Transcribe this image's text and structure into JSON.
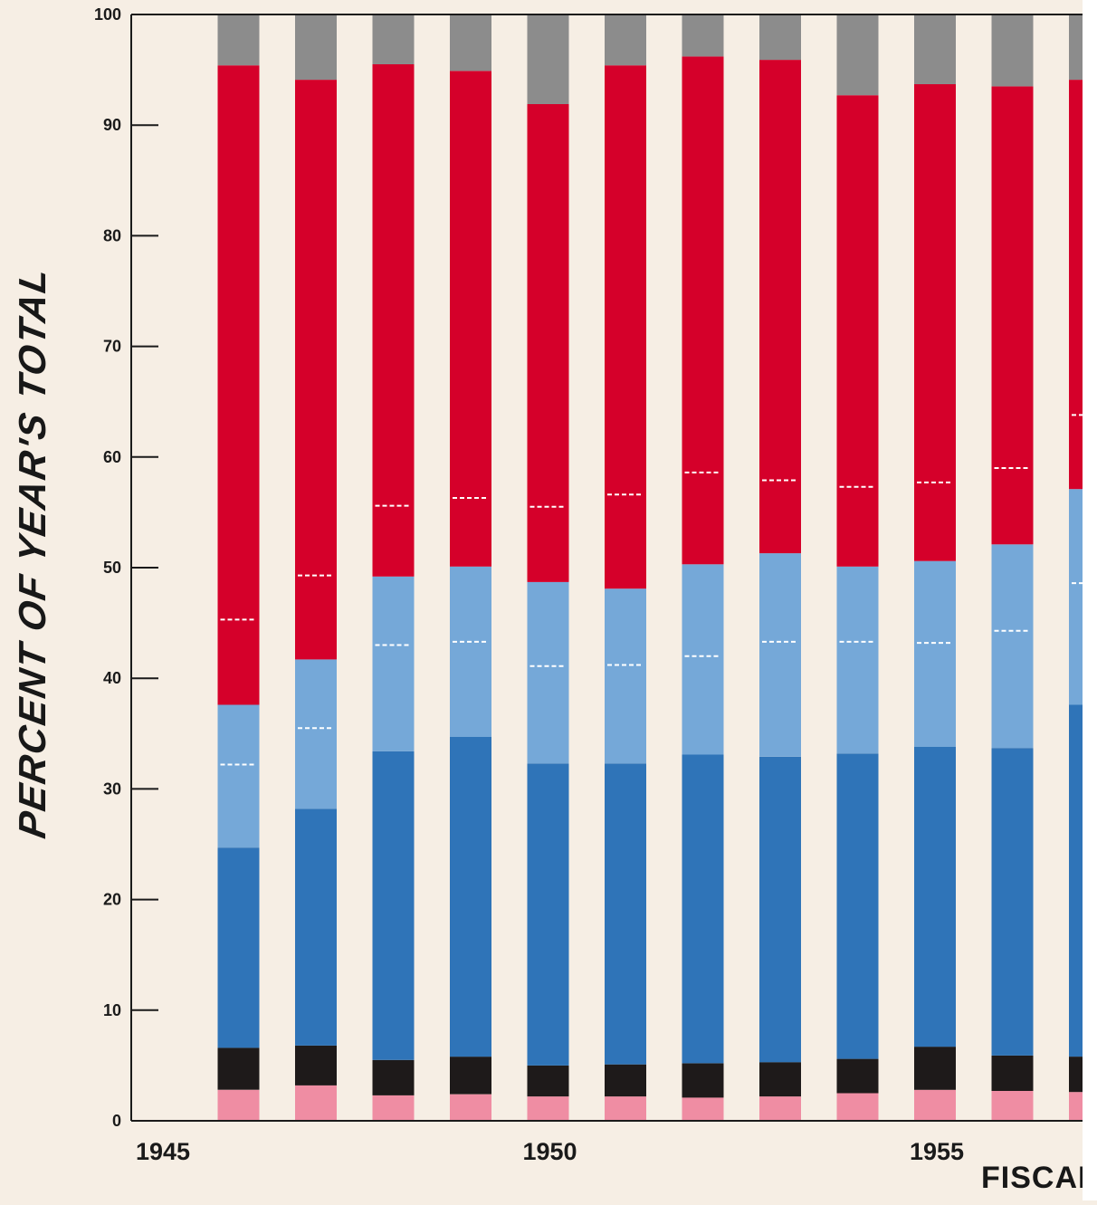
{
  "chart_data": {
    "type": "bar",
    "stacked": true,
    "title": "",
    "ylabel": "PERCENT OF YEAR'S TOTAL",
    "xlabel": "FISCAL",
    "ylim": [
      0,
      100
    ],
    "yticks": [
      0,
      10,
      20,
      30,
      40,
      50,
      60,
      70,
      80,
      90,
      100
    ],
    "x_tick_labels": [
      {
        "year": 1945,
        "label": "1945"
      },
      {
        "year": 1950,
        "label": "1950"
      },
      {
        "year": 1955,
        "label": "1955"
      }
    ],
    "years": [
      1946,
      1947,
      1948,
      1949,
      1950,
      1951,
      1952,
      1953,
      1954,
      1955,
      1956,
      1957
    ],
    "series": [
      {
        "color": "#ef8da3",
        "values": [
          2.8,
          3.2,
          2.3,
          2.4,
          2.2,
          2.2,
          2.1,
          2.2,
          2.5,
          2.8,
          2.7,
          2.6
        ]
      },
      {
        "color": "#1e1a1a",
        "values": [
          3.8,
          3.6,
          3.2,
          3.4,
          2.8,
          2.9,
          3.1,
          3.1,
          3.1,
          3.9,
          3.2,
          3.2
        ]
      },
      {
        "color": "#2f74b8",
        "values": [
          18.1,
          21.4,
          27.9,
          28.9,
          27.3,
          27.2,
          27.9,
          27.6,
          27.6,
          27.1,
          27.8,
          31.8
        ]
      },
      {
        "color": "#75a8d8",
        "values": [
          12.9,
          13.5,
          15.8,
          15.4,
          16.4,
          15.8,
          17.2,
          18.4,
          16.9,
          16.8,
          18.4,
          19.5
        ]
      },
      {
        "color": "#d5002a",
        "values": [
          57.8,
          52.4,
          46.3,
          44.8,
          43.2,
          47.3,
          45.9,
          44.6,
          42.6,
          43.1,
          41.4,
          37.0
        ]
      },
      {
        "color": "#8c8c8c",
        "values": [
          4.6,
          5.9,
          4.5,
          5.1,
          8.1,
          4.6,
          3.8,
          4.1,
          7.3,
          6.3,
          6.5,
          5.9
        ]
      }
    ],
    "dashed_divisions": {
      "light_blue": [
        32.2,
        35.5,
        43.0,
        43.3,
        41.1,
        41.2,
        42.0,
        43.3,
        43.3,
        43.2,
        44.3,
        48.6
      ],
      "red": [
        45.3,
        49.3,
        55.6,
        56.3,
        55.5,
        56.6,
        58.6,
        57.9,
        57.3,
        57.7,
        59.0,
        63.8
      ]
    },
    "grid": false,
    "legend": "none"
  }
}
